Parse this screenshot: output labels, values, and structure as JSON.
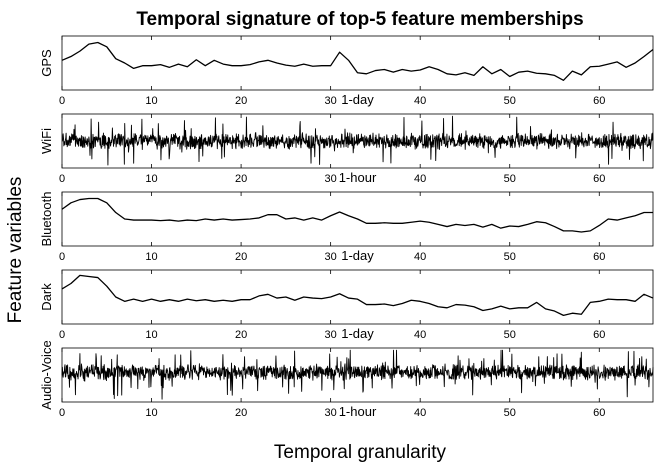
{
  "chart_data": {
    "type": "line",
    "title": "Temporal signature of top-5 feature memberships",
    "xlabel": "Temporal granularity",
    "ylabel": "Feature variables",
    "xlim": [
      0,
      66
    ],
    "xticks": [
      0,
      10,
      20,
      30,
      40,
      50,
      60
    ],
    "grid": false,
    "legend": "none",
    "line_color": "#000000",
    "panels": [
      {
        "name": "GPS",
        "granularity": "1-day",
        "ylim": [
          0,
          1
        ],
        "x": [
          0,
          1,
          2,
          3,
          4,
          5,
          6,
          7,
          8,
          9,
          10,
          11,
          12,
          13,
          14,
          15,
          16,
          17,
          18,
          19,
          20,
          21,
          22,
          23,
          24,
          25,
          26,
          27,
          28,
          29,
          30,
          31,
          32,
          33,
          34,
          35,
          36,
          37,
          38,
          39,
          40,
          41,
          42,
          43,
          44,
          45,
          46,
          47,
          48,
          49,
          50,
          51,
          52,
          53,
          54,
          55,
          56,
          57,
          58,
          59,
          60,
          61,
          62,
          63,
          64,
          65,
          66
        ],
        "values": [
          0.55,
          0.62,
          0.72,
          0.85,
          0.88,
          0.8,
          0.58,
          0.5,
          0.4,
          0.45,
          0.45,
          0.47,
          0.42,
          0.48,
          0.43,
          0.56,
          0.45,
          0.55,
          0.48,
          0.45,
          0.45,
          0.47,
          0.52,
          0.55,
          0.5,
          0.46,
          0.44,
          0.48,
          0.44,
          0.45,
          0.45,
          0.7,
          0.55,
          0.32,
          0.3,
          0.36,
          0.38,
          0.33,
          0.38,
          0.35,
          0.37,
          0.43,
          0.38,
          0.3,
          0.28,
          0.32,
          0.27,
          0.43,
          0.3,
          0.38,
          0.25,
          0.33,
          0.35,
          0.31,
          0.3,
          0.27,
          0.18,
          0.35,
          0.28,
          0.43,
          0.44,
          0.48,
          0.52,
          0.42,
          0.5,
          0.62,
          0.75
        ]
      },
      {
        "name": "WiFi",
        "granularity": "1-hour",
        "ylim": [
          0,
          1
        ],
        "x_range": [
          0,
          66
        ],
        "n_points": 1584,
        "baseline": 0.5,
        "noise_amplitude": 0.3
      },
      {
        "name": "Bluetooth",
        "granularity": "1-day",
        "ylim": [
          0,
          1
        ],
        "x": [
          0,
          1,
          2,
          3,
          4,
          5,
          6,
          7,
          8,
          9,
          10,
          11,
          12,
          13,
          14,
          15,
          16,
          17,
          18,
          19,
          20,
          21,
          22,
          23,
          24,
          25,
          26,
          27,
          28,
          29,
          30,
          31,
          32,
          33,
          34,
          35,
          36,
          37,
          38,
          39,
          40,
          41,
          42,
          43,
          44,
          45,
          46,
          47,
          48,
          49,
          50,
          51,
          52,
          53,
          54,
          55,
          56,
          57,
          58,
          59,
          60,
          61,
          62,
          63,
          64,
          65,
          66
        ],
        "values": [
          0.68,
          0.8,
          0.86,
          0.88,
          0.88,
          0.8,
          0.62,
          0.5,
          0.48,
          0.48,
          0.48,
          0.47,
          0.48,
          0.46,
          0.48,
          0.47,
          0.5,
          0.48,
          0.5,
          0.48,
          0.49,
          0.5,
          0.52,
          0.58,
          0.58,
          0.5,
          0.52,
          0.48,
          0.52,
          0.48,
          0.56,
          0.63,
          0.56,
          0.5,
          0.42,
          0.42,
          0.43,
          0.42,
          0.42,
          0.44,
          0.46,
          0.44,
          0.4,
          0.36,
          0.4,
          0.38,
          0.4,
          0.35,
          0.4,
          0.33,
          0.37,
          0.36,
          0.4,
          0.45,
          0.43,
          0.36,
          0.28,
          0.28,
          0.26,
          0.28,
          0.38,
          0.5,
          0.48,
          0.52,
          0.56,
          0.62,
          0.62
        ]
      },
      {
        "name": "Dark",
        "granularity": "1-day",
        "ylim": [
          0,
          1
        ],
        "x": [
          0,
          1,
          2,
          3,
          4,
          5,
          6,
          7,
          8,
          9,
          10,
          11,
          12,
          13,
          14,
          15,
          16,
          17,
          18,
          19,
          20,
          21,
          22,
          23,
          24,
          25,
          26,
          27,
          28,
          29,
          30,
          31,
          32,
          33,
          34,
          35,
          36,
          37,
          38,
          39,
          40,
          41,
          42,
          43,
          44,
          45,
          46,
          47,
          48,
          49,
          50,
          51,
          52,
          53,
          54,
          55,
          56,
          57,
          58,
          59,
          60,
          61,
          62,
          63,
          64,
          65,
          66
        ],
        "values": [
          0.65,
          0.75,
          0.9,
          0.88,
          0.86,
          0.7,
          0.5,
          0.42,
          0.46,
          0.42,
          0.46,
          0.42,
          0.45,
          0.42,
          0.46,
          0.43,
          0.45,
          0.42,
          0.44,
          0.42,
          0.45,
          0.45,
          0.52,
          0.55,
          0.48,
          0.5,
          0.44,
          0.5,
          0.48,
          0.47,
          0.5,
          0.56,
          0.48,
          0.46,
          0.36,
          0.36,
          0.37,
          0.34,
          0.38,
          0.44,
          0.42,
          0.38,
          0.32,
          0.3,
          0.36,
          0.35,
          0.32,
          0.25,
          0.28,
          0.33,
          0.28,
          0.3,
          0.3,
          0.4,
          0.28,
          0.24,
          0.16,
          0.2,
          0.18,
          0.4,
          0.42,
          0.46,
          0.45,
          0.45,
          0.42,
          0.55,
          0.48
        ]
      },
      {
        "name": "Audio-Voice",
        "granularity": "1-hour",
        "ylim": [
          0,
          1
        ],
        "x_range": [
          0,
          66
        ],
        "n_points": 1584,
        "baseline": 0.55,
        "noise_amplitude": 0.3
      }
    ]
  }
}
